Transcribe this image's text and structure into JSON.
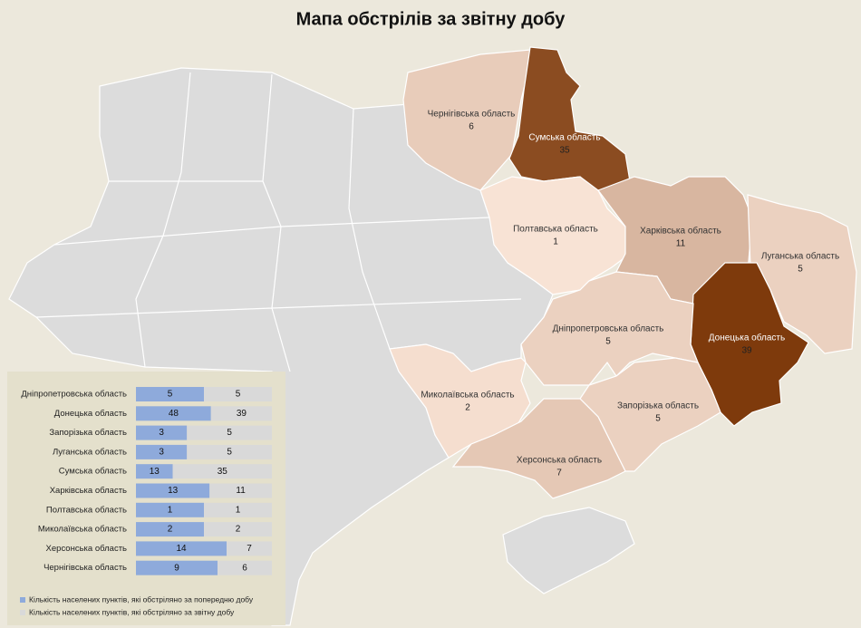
{
  "title": "Мапа обстрілів за звітну добу",
  "map": {
    "color_scale": [
      "#fbe7da",
      "#7e3a0c"
    ],
    "regions": [
      {
        "name": "Чернігівська область",
        "value": 6
      },
      {
        "name": "Сумська область",
        "value": 35
      },
      {
        "name": "Полтавська область",
        "value": 1
      },
      {
        "name": "Харківська область",
        "value": 11
      },
      {
        "name": "Луганська область",
        "value": 5
      },
      {
        "name": "Донецька область",
        "value": 39
      },
      {
        "name": "Дніпропетровська область",
        "value": 5
      },
      {
        "name": "Запорізька область",
        "value": 5
      },
      {
        "name": "Миколаївська область",
        "value": 2
      },
      {
        "name": "Херсонська область",
        "value": 7
      }
    ]
  },
  "chart_data": {
    "type": "bar",
    "categories": [
      "Дніпропетровська область",
      "Донецька область",
      "Запорізька область",
      "Луганська область",
      "Сумська область",
      "Харківська область",
      "Полтавська область",
      "Миколаївська область",
      "Херсонська область",
      "Чернігівська область"
    ],
    "series": [
      {
        "name": "Кількість населених пунктів, які обстріляно за попередню добу",
        "color": "#8eaadb",
        "values": [
          5,
          48,
          3,
          3,
          13,
          13,
          1,
          2,
          14,
          9
        ]
      },
      {
        "name": "Кількість населених пунктів, які обстріляно за звітну добу",
        "color": "#d9d9d9",
        "values": [
          5,
          39,
          5,
          5,
          35,
          11,
          1,
          2,
          7,
          6
        ]
      }
    ]
  }
}
